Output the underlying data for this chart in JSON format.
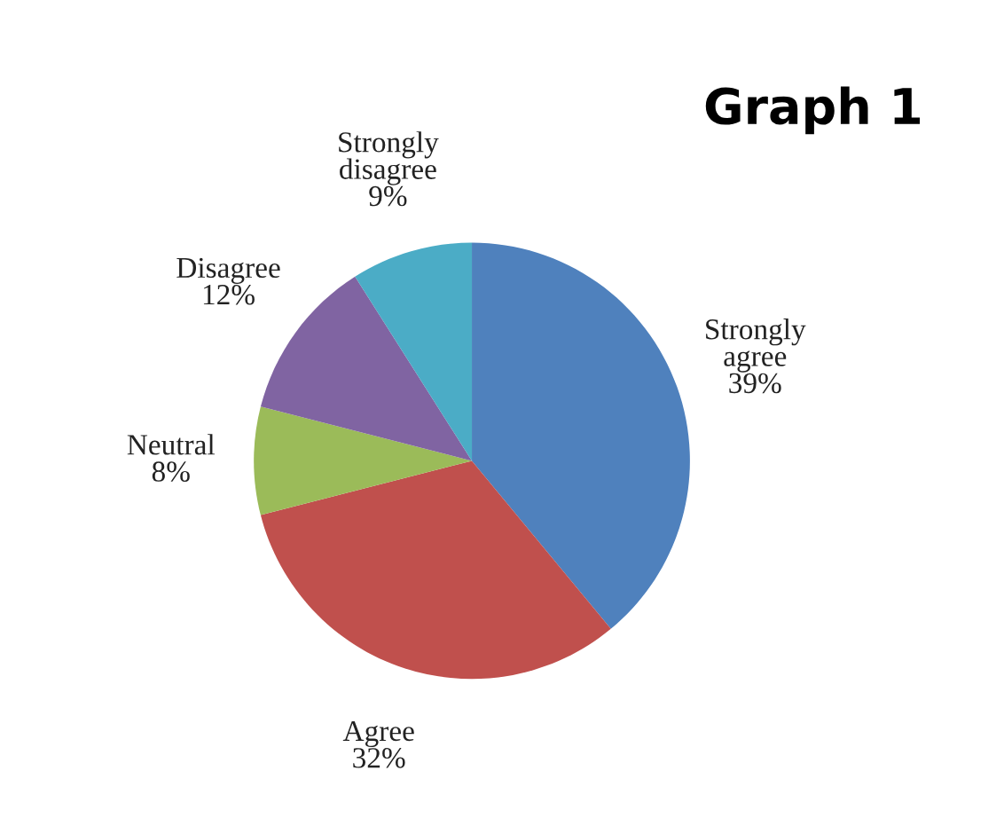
{
  "chart_data": {
    "type": "pie",
    "title": "Graph 1",
    "categories": [
      "Strongly agree",
      "Agree",
      "Neutral",
      "Disagree",
      "Strongly disagree"
    ],
    "values": [
      39,
      32,
      8,
      12,
      9
    ],
    "value_labels": [
      "39%",
      "32%",
      "8%",
      "12%",
      "9%"
    ],
    "colors": [
      "#4f81bd",
      "#c0504d",
      "#9bbb59",
      "#8064a2",
      "#4bacc6"
    ],
    "legend": false
  }
}
